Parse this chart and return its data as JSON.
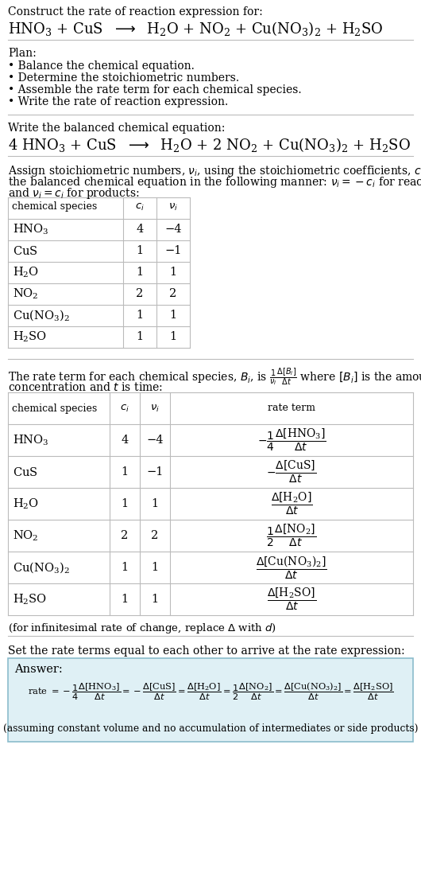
{
  "bg_color": "#ffffff",
  "title_line1": "Construct the rate of reaction expression for:",
  "plan_header": "Plan:",
  "plan_items": [
    "• Balance the chemical equation.",
    "• Determine the stoichiometric numbers.",
    "• Assemble the rate term for each chemical species.",
    "• Write the rate of reaction expression."
  ],
  "balanced_header": "Write the balanced chemical equation:",
  "table1_headers": [
    "chemical species",
    "c_i",
    "v_i"
  ],
  "table1_data": [
    [
      "HNO_3",
      "4",
      "−4"
    ],
    [
      "CuS",
      "1",
      "−1"
    ],
    [
      "H_2O",
      "1",
      "1"
    ],
    [
      "NO_2",
      "2",
      "2"
    ],
    [
      "Cu(NO_3)_2",
      "1",
      "1"
    ],
    [
      "H_2SO",
      "1",
      "1"
    ]
  ],
  "table2_data": [
    [
      "HNO_3",
      "4",
      "−4"
    ],
    [
      "CuS",
      "1",
      "−1"
    ],
    [
      "H_2O",
      "1",
      "1"
    ],
    [
      "NO_2",
      "2",
      "2"
    ],
    [
      "Cu(NO_3)_2",
      "1",
      "1"
    ],
    [
      "H_2SO",
      "1",
      "1"
    ]
  ],
  "infinitesimal_note": "(for infinitesimal rate of change, replace Δ with d)",
  "set_rate_header": "Set the rate terms equal to each other to arrive at the rate expression:",
  "answer_label": "Answer:",
  "answer_box_color": "#dff0f5",
  "answer_box_border": "#8bbccc",
  "assuming_note": "(assuming constant volume and no accumulation of intermediates or side products)"
}
